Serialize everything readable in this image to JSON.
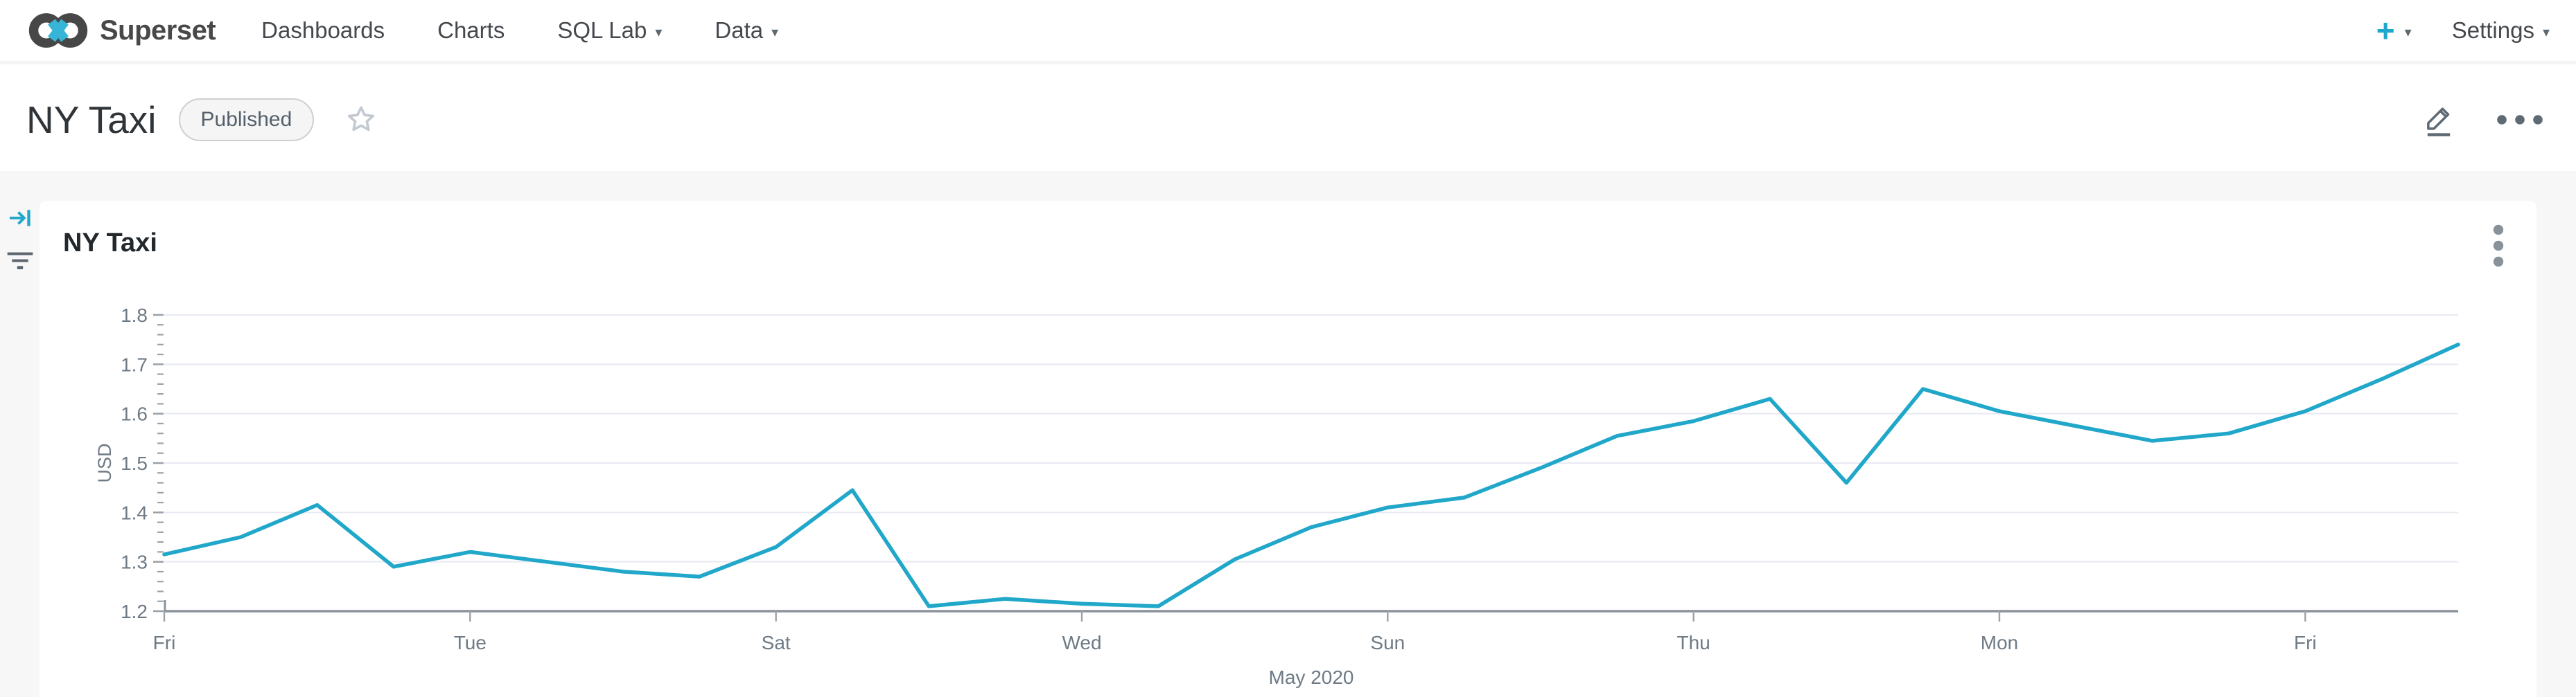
{
  "navbar": {
    "brand": "Superset",
    "items": [
      {
        "label": "Dashboards",
        "has_caret": false
      },
      {
        "label": "Charts",
        "has_caret": false
      },
      {
        "label": "SQL Lab",
        "has_caret": true
      },
      {
        "label": "Data",
        "has_caret": true
      }
    ],
    "plus_label": "+",
    "settings_label": "Settings",
    "accent_color": "#20A7C9"
  },
  "header": {
    "title": "NY Taxi",
    "badge": "Published"
  },
  "chart_card": {
    "title": "NY Taxi"
  },
  "chart_data": {
    "type": "line",
    "title": "NY Taxi",
    "ylabel": "USD",
    "xlabel": "May 2020",
    "x": [
      "2020-05-01",
      "2020-05-02",
      "2020-05-03",
      "2020-05-04",
      "2020-05-05",
      "2020-05-06",
      "2020-05-07",
      "2020-05-08",
      "2020-05-09",
      "2020-05-10",
      "2020-05-11",
      "2020-05-12",
      "2020-05-13",
      "2020-05-14",
      "2020-05-15",
      "2020-05-16",
      "2020-05-17",
      "2020-05-18",
      "2020-05-19",
      "2020-05-20",
      "2020-05-21",
      "2020-05-22",
      "2020-05-23",
      "2020-05-24",
      "2020-05-25",
      "2020-05-26",
      "2020-05-27",
      "2020-05-28",
      "2020-05-29",
      "2020-05-30",
      "2020-05-31"
    ],
    "values": [
      1.315,
      1.35,
      1.415,
      1.29,
      1.32,
      1.3,
      1.28,
      1.27,
      1.33,
      1.445,
      1.21,
      1.225,
      1.215,
      1.21,
      1.305,
      1.37,
      1.41,
      1.43,
      1.49,
      1.555,
      1.585,
      1.63,
      1.46,
      1.65,
      1.605,
      1.575,
      1.545,
      1.56,
      1.605,
      1.67,
      1.74
    ],
    "x_tick_labels": [
      {
        "index": 0,
        "label": "Fri"
      },
      {
        "index": 4,
        "label": "Tue"
      },
      {
        "index": 8,
        "label": "Sat"
      },
      {
        "index": 12,
        "label": "Wed"
      },
      {
        "index": 16,
        "label": "Sun"
      },
      {
        "index": 20,
        "label": "Thu"
      },
      {
        "index": 24,
        "label": "Mon"
      },
      {
        "index": 28,
        "label": "Fri"
      }
    ],
    "ylim": [
      1.2,
      1.8
    ],
    "y_major_step": 0.1,
    "y_minor_step": 0.02,
    "grid": true,
    "legend": "none",
    "line_color": "#20A7C9",
    "grid_color": "#E7E9F2",
    "axis_color": "#8C929A",
    "label_color": "#6E7A85"
  }
}
